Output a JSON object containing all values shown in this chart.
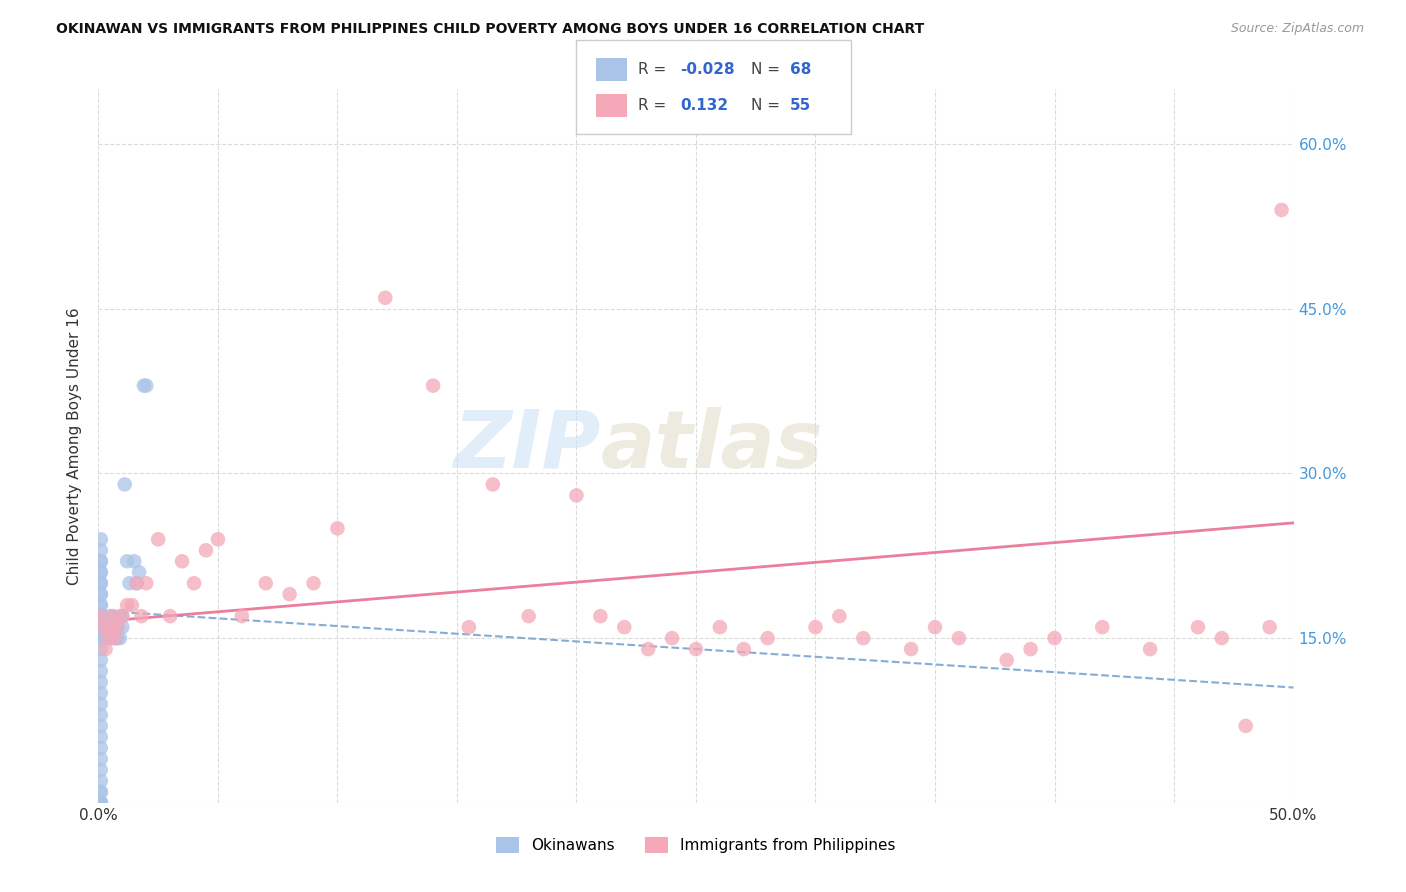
{
  "title": "OKINAWAN VS IMMIGRANTS FROM PHILIPPINES CHILD POVERTY AMONG BOYS UNDER 16 CORRELATION CHART",
  "source": "Source: ZipAtlas.com",
  "ylabel": "Child Poverty Among Boys Under 16",
  "xlim": [
    0.0,
    0.5
  ],
  "ylim": [
    0.0,
    0.65
  ],
  "xticks": [
    0.0,
    0.05,
    0.1,
    0.15,
    0.2,
    0.25,
    0.3,
    0.35,
    0.4,
    0.45,
    0.5
  ],
  "ytick_positions": [
    0.0,
    0.15,
    0.3,
    0.45,
    0.6
  ],
  "ytick_labels_right": [
    "",
    "15.0%",
    "30.0%",
    "45.0%",
    "60.0%"
  ],
  "grid_color": "#cccccc",
  "background_color": "#ffffff",
  "okinawan_color": "#aac4e8",
  "philippines_color": "#f4a8b8",
  "okinawan_line_color": "#6699cc",
  "philippines_line_color": "#e87090",
  "legend_label1": "Okinawans",
  "legend_label2": "Immigrants from Philippines",
  "watermark_zip": "ZIP",
  "watermark_atlas": "atlas",
  "ok_r": "-0.028",
  "ok_n": "68",
  "ph_r": "0.132",
  "ph_n": "55",
  "okinawan_x": [
    0.001,
    0.001,
    0.001,
    0.001,
    0.001,
    0.001,
    0.001,
    0.001,
    0.001,
    0.001,
    0.001,
    0.001,
    0.001,
    0.001,
    0.001,
    0.001,
    0.001,
    0.001,
    0.001,
    0.001,
    0.001,
    0.001,
    0.001,
    0.001,
    0.001,
    0.001,
    0.001,
    0.001,
    0.001,
    0.001,
    0.001,
    0.001,
    0.001,
    0.001,
    0.001,
    0.001,
    0.001,
    0.001,
    0.001,
    0.001,
    0.002,
    0.002,
    0.002,
    0.003,
    0.003,
    0.004,
    0.005,
    0.005,
    0.005,
    0.006,
    0.006,
    0.006,
    0.007,
    0.007,
    0.008,
    0.008,
    0.009,
    0.009,
    0.01,
    0.01,
    0.011,
    0.012,
    0.013,
    0.015,
    0.016,
    0.017,
    0.019,
    0.02
  ],
  "okinawan_y": [
    0.0,
    0.0,
    0.0,
    0.0,
    0.0,
    0.01,
    0.01,
    0.02,
    0.03,
    0.04,
    0.05,
    0.06,
    0.07,
    0.08,
    0.09,
    0.1,
    0.11,
    0.12,
    0.13,
    0.14,
    0.15,
    0.15,
    0.16,
    0.16,
    0.17,
    0.17,
    0.18,
    0.18,
    0.19,
    0.19,
    0.2,
    0.2,
    0.21,
    0.21,
    0.22,
    0.22,
    0.23,
    0.24,
    0.15,
    0.17,
    0.16,
    0.15,
    0.17,
    0.16,
    0.15,
    0.16,
    0.15,
    0.16,
    0.17,
    0.15,
    0.16,
    0.17,
    0.15,
    0.16,
    0.15,
    0.16,
    0.17,
    0.15,
    0.16,
    0.17,
    0.29,
    0.22,
    0.2,
    0.22,
    0.2,
    0.21,
    0.38,
    0.38
  ],
  "philippines_x": [
    0.001,
    0.002,
    0.003,
    0.004,
    0.005,
    0.006,
    0.007,
    0.008,
    0.01,
    0.012,
    0.014,
    0.016,
    0.018,
    0.02,
    0.025,
    0.03,
    0.035,
    0.04,
    0.045,
    0.05,
    0.06,
    0.07,
    0.08,
    0.09,
    0.1,
    0.12,
    0.14,
    0.155,
    0.165,
    0.18,
    0.2,
    0.21,
    0.22,
    0.23,
    0.24,
    0.25,
    0.26,
    0.27,
    0.28,
    0.3,
    0.31,
    0.32,
    0.34,
    0.35,
    0.36,
    0.38,
    0.39,
    0.4,
    0.42,
    0.44,
    0.46,
    0.47,
    0.48,
    0.49,
    0.495
  ],
  "philippines_y": [
    0.17,
    0.16,
    0.14,
    0.15,
    0.16,
    0.17,
    0.15,
    0.16,
    0.17,
    0.18,
    0.18,
    0.2,
    0.17,
    0.2,
    0.24,
    0.17,
    0.22,
    0.2,
    0.23,
    0.24,
    0.17,
    0.2,
    0.19,
    0.2,
    0.25,
    0.46,
    0.38,
    0.16,
    0.29,
    0.17,
    0.28,
    0.17,
    0.16,
    0.14,
    0.15,
    0.14,
    0.16,
    0.14,
    0.15,
    0.16,
    0.17,
    0.15,
    0.14,
    0.16,
    0.15,
    0.13,
    0.14,
    0.15,
    0.16,
    0.14,
    0.16,
    0.15,
    0.07,
    0.16,
    0.54
  ],
  "ok_line_x": [
    0.0,
    0.5
  ],
  "ok_line_y_start": 0.175,
  "ok_line_y_end": 0.105,
  "ph_line_y_start": 0.165,
  "ph_line_y_end": 0.255
}
